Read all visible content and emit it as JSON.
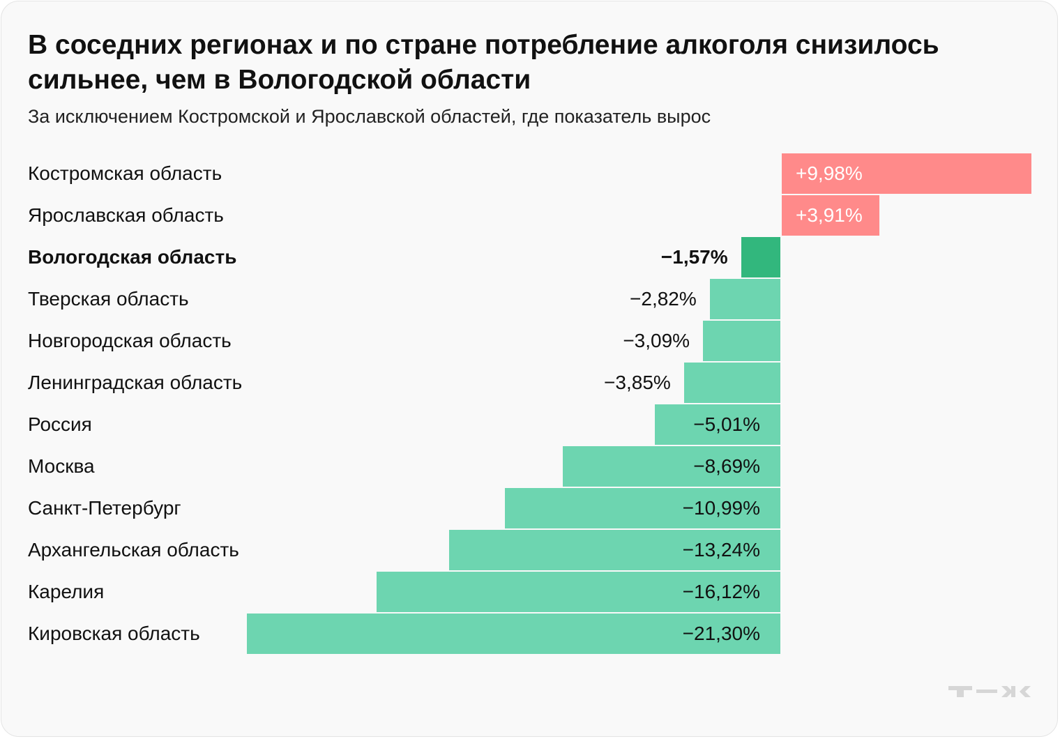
{
  "chart_data": {
    "type": "bar",
    "orientation": "horizontal",
    "title": "В соседних регионах и по стране потребление алкоголя снизилось сильнее, чем в Вологодской области",
    "subtitle": "За исключением Костромской и Ярославской областей, где показатель вырос",
    "categories": [
      "Костромская область",
      "Ярославская область",
      "Вологодская область",
      "Тверская область",
      "Новгородская область",
      "Ленинградская область",
      "Россия",
      "Москва",
      "Санкт-Петербург",
      "Архангельская область",
      "Карелия",
      "Кировская область"
    ],
    "values": [
      9.98,
      3.91,
      -1.57,
      -2.82,
      -3.09,
      -3.85,
      -5.01,
      -8.69,
      -10.99,
      -13.24,
      -16.12,
      -21.3
    ],
    "labels": [
      "+9,98%",
      "+3,91%",
      "−1,57%",
      "−2,82%",
      "−3,09%",
      "−3,85%",
      "−5,01%",
      "−8,69%",
      "−10,99%",
      "−13,24%",
      "−16,12%",
      "−21,30%"
    ],
    "highlight": "Вологодская область",
    "xlabel": "",
    "ylabel": "",
    "grid": false,
    "colors": {
      "positive": "#ff8a8a",
      "negative": "#6dd5b0",
      "highlight": "#32b77d"
    }
  },
  "brand": {
    "logo_text": "Т—Ж"
  }
}
